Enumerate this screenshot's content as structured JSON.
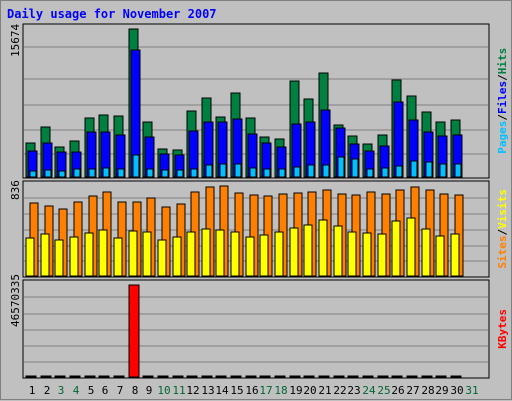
{
  "chart_data": {
    "type": "bar",
    "title": "Daily usage for November 2007",
    "days": [
      "1",
      "2",
      "3",
      "4",
      "5",
      "6",
      "7",
      "8",
      "9",
      "10",
      "11",
      "12",
      "13",
      "14",
      "15",
      "16",
      "17",
      "18",
      "19",
      "20",
      "21",
      "22",
      "23",
      "24",
      "25",
      "26",
      "27",
      "28",
      "29",
      "30",
      "31"
    ],
    "weekend_days": [
      "3",
      "4",
      "10",
      "11",
      "17",
      "18",
      "24",
      "25",
      "31"
    ],
    "colors": {
      "title": "#0000ff",
      "day_label": "#000000",
      "weekend_label": "#006633",
      "hits": "#008040",
      "files": "#0000ff",
      "pages": "#00c0ff",
      "visits": "#ffff00",
      "sites": "#ff8000",
      "kbytes": "#ff0000",
      "separator_slash": "#000000"
    },
    "panels": [
      {
        "name": "hits_files_pages",
        "max_label": "15674",
        "ylim": [
          0,
          15674
        ],
        "right_labels": [
          {
            "text": "Pages",
            "color": "#00c0ff"
          },
          {
            "text": "/",
            "color": "#000000"
          },
          {
            "text": "Files",
            "color": "#0000ff"
          },
          {
            "text": "/",
            "color": "#000000"
          },
          {
            "text": "Hits",
            "color": "#008040"
          }
        ],
        "series": [
          {
            "name": "Hits",
            "color": "#008040",
            "values": [
              3600,
              5300,
              3200,
              3800,
              6300,
              6600,
              6500,
              15674,
              5800,
              3000,
              2900,
              7000,
              8400,
              6400,
              8900,
              6300,
              4200,
              4000,
              10200,
              8300,
              11000,
              5500,
              4300,
              3500,
              4400,
              10300,
              8600,
              6900,
              5800,
              6000,
              0
            ]
          },
          {
            "name": "Files",
            "color": "#0000ff",
            "values": [
              2800,
              3600,
              2600,
              2600,
              4800,
              4800,
              4400,
              13400,
              4200,
              2400,
              2300,
              4900,
              5800,
              5800,
              6100,
              4600,
              3600,
              3200,
              5600,
              5800,
              7100,
              5200,
              3500,
              2800,
              3300,
              7900,
              6000,
              4800,
              4300,
              4500,
              0
            ]
          },
          {
            "name": "Pages",
            "color": "#00c0ff",
            "values": [
              600,
              700,
              600,
              800,
              900,
              1000,
              900,
              2300,
              900,
              700,
              700,
              900,
              1300,
              1400,
              1400,
              1000,
              800,
              900,
              1100,
              1300,
              1300,
              2100,
              1900,
              900,
              1000,
              1200,
              1700,
              1600,
              1400,
              1400,
              0
            ]
          }
        ]
      },
      {
        "name": "visits_sites",
        "max_label": "836",
        "ylim": [
          0,
          836
        ],
        "right_labels": [
          {
            "text": "Sites",
            "color": "#ff8000"
          },
          {
            "text": "/",
            "color": "#000000"
          },
          {
            "text": "Visits",
            "color": "#ffff00"
          }
        ],
        "series": [
          {
            "name": "Sites",
            "color": "#ff8000",
            "values": [
              680,
              650,
              620,
              690,
              740,
              780,
              690,
              690,
              720,
              640,
              670,
              780,
              826,
              836,
              770,
              750,
              740,
              760,
              770,
              780,
              800,
              760,
              750,
              780,
              760,
              800,
              830,
              800,
              760,
              750,
              0
            ]
          },
          {
            "name": "Visits",
            "color": "#ffff00",
            "values": [
              350,
              390,
              330,
              360,
              400,
              430,
              350,
              420,
              410,
              330,
              360,
              410,
              440,
              430,
              410,
              360,
              380,
              410,
              450,
              470,
              520,
              460,
              410,
              400,
              390,
              510,
              540,
              440,
              370,
              390,
              0
            ]
          }
        ]
      },
      {
        "name": "kbytes",
        "max_label": "46570335",
        "ylim": [
          0,
          46570335
        ],
        "right_labels": [
          {
            "text": "KBytes",
            "color": "#ff0000"
          }
        ],
        "series": [
          {
            "name": "KBytes",
            "color": "#ff0000",
            "values": [
              18200,
              15700,
              17900,
              19200,
              19900,
              23000,
              14200,
              46570335,
              27400,
              12800,
              20500,
              35800,
              28000,
              20200,
              29200,
              21800,
              20400,
              27400,
              15600,
              21700,
              29800,
              19300,
              40500,
              26600,
              34400,
              24800,
              37900,
              34600,
              23200,
              41300,
              0
            ]
          }
        ]
      }
    ]
  }
}
